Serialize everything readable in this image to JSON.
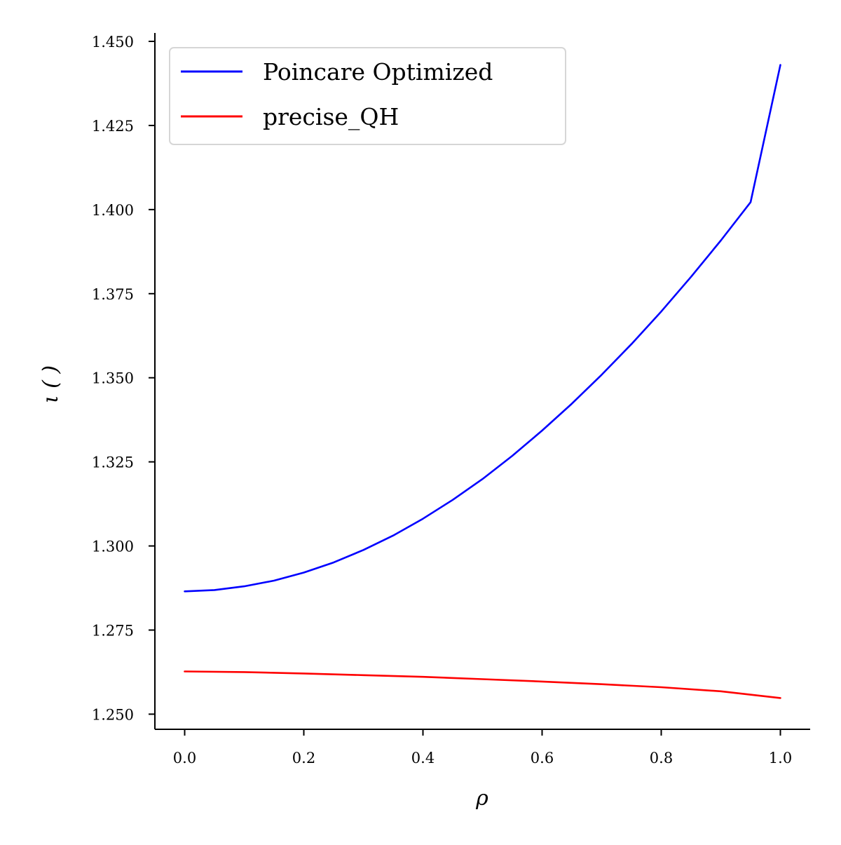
{
  "chart_data": {
    "type": "line",
    "xlabel": "ρ",
    "ylabel": "ι ( )",
    "xlim": [
      -0.05,
      1.05
    ],
    "ylim": [
      1.2455,
      1.4525
    ],
    "xticks": [
      0.0,
      0.2,
      0.4,
      0.6,
      0.8,
      1.0
    ],
    "xtick_labels": [
      "0.0",
      "0.2",
      "0.4",
      "0.6",
      "0.8",
      "1.0"
    ],
    "yticks": [
      1.25,
      1.275,
      1.3,
      1.325,
      1.35,
      1.375,
      1.4,
      1.425,
      1.45
    ],
    "ytick_labels": [
      "1.250",
      "1.275",
      "1.300",
      "1.325",
      "1.350",
      "1.375",
      "1.400",
      "1.425",
      "1.450"
    ],
    "grid": false,
    "legend_position": "top-left",
    "series": [
      {
        "name": "Poincare Optimized",
        "color": "#0000ff",
        "x": [
          0.0,
          0.05,
          0.1,
          0.15,
          0.2,
          0.25,
          0.3,
          0.35,
          0.4,
          0.45,
          0.5,
          0.55,
          0.6,
          0.65,
          0.7,
          0.75,
          0.8,
          0.85,
          0.9,
          0.95,
          1.0
        ],
        "y": [
          1.2865,
          1.2869,
          1.288,
          1.2897,
          1.2921,
          1.2951,
          1.2988,
          1.3031,
          1.3081,
          1.3137,
          1.3199,
          1.3268,
          1.3343,
          1.3423,
          1.3509,
          1.36,
          1.3697,
          1.38,
          1.3908,
          1.4022,
          1.443
        ]
      },
      {
        "name": "precise_QH",
        "color": "#ff0000",
        "x": [
          0.0,
          0.1,
          0.2,
          0.3,
          0.4,
          0.5,
          0.6,
          0.7,
          0.8,
          0.9,
          1.0
        ],
        "y": [
          1.2627,
          1.2625,
          1.2621,
          1.2616,
          1.2611,
          1.2604,
          1.2597,
          1.2589,
          1.258,
          1.2568,
          1.2548
        ]
      }
    ]
  }
}
